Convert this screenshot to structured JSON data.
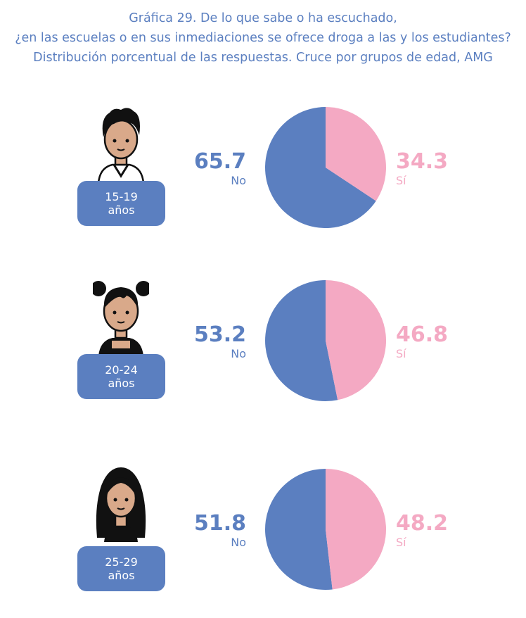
{
  "title": {
    "line1": "Gráfica 29. De lo que sabe o ha escuchado,",
    "line2": "¿en las escuelas o en sus inmediaciones se ofrece droga a las y los estudiantes?",
    "line3": "Distribución porcentual de las respuestas. Cruce por grupos de edad, AMG"
  },
  "colors": {
    "no": "#5b7fc0",
    "si": "#f4a9c3"
  },
  "chart_data": {
    "type": "pie",
    "series_labels": [
      "No",
      "Sí"
    ],
    "groups": [
      {
        "age": "15-19",
        "unit": "años",
        "no_value": "65.7",
        "si_value": "34.3",
        "no_label": "No",
        "si_label": "Sí",
        "no": 65.7,
        "si": 34.3
      },
      {
        "age": "20-24",
        "unit": "años",
        "no_value": "53.2",
        "si_value": "46.8",
        "no_label": "No",
        "si_label": "Sí",
        "no": 53.2,
        "si": 46.8
      },
      {
        "age": "25-29",
        "unit": "años",
        "no_value": "51.8",
        "si_value": "48.2",
        "no_label": "No",
        "si_label": "Sí",
        "no": 51.8,
        "si": 48.2
      }
    ]
  }
}
